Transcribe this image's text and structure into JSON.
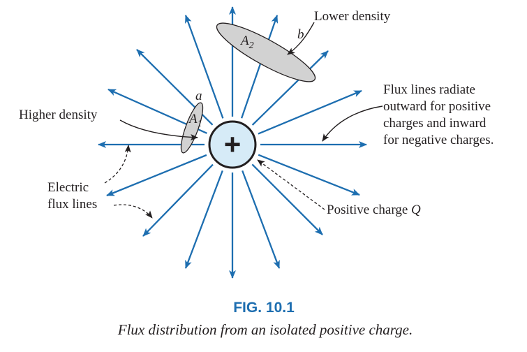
{
  "labels": {
    "lower_density": "Lower density",
    "b": "b",
    "a2": "A",
    "a2_sub": "2",
    "a": "a",
    "a1": "A",
    "a1_sub": "1",
    "higher_density": "Higher density",
    "radiate_1": "Flux lines radiate",
    "radiate_2": "outward for positive",
    "radiate_3": "charges and inward",
    "radiate_4": "for negative charges.",
    "electric_1": "Electric",
    "electric_2": "flux lines",
    "positive_charge": "Positive charge ",
    "q": "Q",
    "plus": "+"
  },
  "caption": {
    "number": "FIG. 10.1",
    "text": "Flux distribution from an isolated positive charge."
  },
  "diagram": {
    "flux_line_count": 16,
    "charge_sign": "positive",
    "line_direction": "outward",
    "colors": {
      "flux": "#1d6eb0",
      "charge_fill": "#d6ebf7",
      "area_fill": "#d2d2d2",
      "text": "#231f20",
      "caption_number": "#1d6eb0"
    }
  }
}
